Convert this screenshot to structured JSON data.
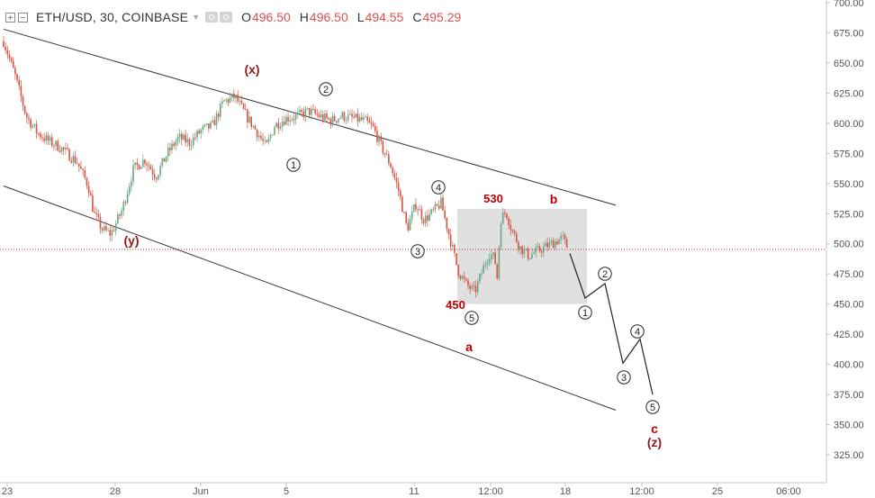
{
  "header": {
    "symbol": "ETH/USD, 30, COINBASE",
    "ohlc": [
      {
        "key": "O",
        "value": "496.50"
      },
      {
        "key": "H",
        "value": "496.50"
      },
      {
        "key": "L",
        "value": "494.55"
      },
      {
        "key": "C",
        "value": "495.29"
      }
    ],
    "icons": [
      "expand-icon",
      "collapse-icon",
      "visibility-icon",
      "settings-icon"
    ]
  },
  "colors": {
    "up": "#6ba583",
    "down": "#d75442",
    "label_red": "#c00000",
    "wave_label_dark": "#8b1a1a",
    "box_fill": "#e0e0e0",
    "price_line": "#cc2a2a",
    "axis_text": "#555555"
  },
  "chart_data": {
    "type": "candlestick",
    "y_axis": {
      "side": "right",
      "range": [
        310,
        700
      ],
      "ticks": [
        "325.00",
        "350.00",
        "375.00",
        "400.00",
        "425.00",
        "450.00",
        "475.00",
        "500.00",
        "525.00",
        "550.00",
        "575.00",
        "600.00",
        "625.00",
        "650.00",
        "675.00",
        "700.00"
      ]
    },
    "x_axis": {
      "labels": [
        "23",
        "28",
        "Jun",
        "5",
        "11",
        "12:00",
        "18",
        "12:00",
        "25",
        "06:00"
      ]
    },
    "last_price": 495.29,
    "price_path": [
      [
        0,
        668
      ],
      [
        0.04,
        640
      ],
      [
        0.08,
        606
      ],
      [
        0.12,
        592
      ],
      [
        0.16,
        585
      ],
      [
        0.2,
        580
      ],
      [
        0.26,
        568
      ],
      [
        0.3,
        548
      ],
      [
        0.32,
        525
      ],
      [
        0.35,
        512
      ],
      [
        0.38,
        508
      ],
      [
        0.42,
        528
      ],
      [
        0.46,
        562
      ],
      [
        0.5,
        570
      ],
      [
        0.54,
        556
      ],
      [
        0.58,
        575
      ],
      [
        0.62,
        588
      ],
      [
        0.66,
        584
      ],
      [
        0.7,
        594
      ],
      [
        0.74,
        598
      ],
      [
        0.78,
        618
      ],
      [
        0.82,
        622
      ],
      [
        0.86,
        606
      ],
      [
        0.9,
        592
      ],
      [
        0.93,
        580
      ],
      [
        0.96,
        598
      ],
      [
        1.0,
        604
      ],
      [
        1.04,
        606
      ],
      [
        1.08,
        610
      ],
      [
        1.12,
        606
      ],
      [
        1.16,
        602
      ],
      [
        1.2,
        606
      ],
      [
        1.24,
        604
      ],
      [
        1.28,
        602
      ],
      [
        1.31,
        596
      ],
      [
        1.34,
        580
      ],
      [
        1.37,
        566
      ],
      [
        1.4,
        544
      ],
      [
        1.43,
        512
      ],
      [
        1.46,
        533
      ],
      [
        1.49,
        520
      ],
      [
        1.52,
        526
      ],
      [
        1.55,
        534
      ],
      [
        1.58,
        506
      ],
      [
        1.61,
        478
      ],
      [
        1.64,
        466
      ],
      [
        1.67,
        460
      ],
      [
        1.7,
        480
      ],
      [
        1.72,
        492
      ],
      [
        1.74,
        488
      ],
      [
        1.75,
        470
      ],
      [
        1.76,
        520
      ],
      [
        1.78,
        527
      ],
      [
        1.8,
        512
      ],
      [
        1.83,
        497
      ],
      [
        1.86,
        490
      ],
      [
        1.9,
        495
      ],
      [
        1.94,
        500
      ],
      [
        1.98,
        505
      ],
      [
        2.0,
        496
      ]
    ],
    "projection": [
      [
        0.0,
        492
      ],
      [
        0.05,
        455
      ],
      [
        0.09,
        467
      ],
      [
        0.15,
        401
      ],
      [
        0.19,
        421
      ],
      [
        0.24,
        375
      ]
    ],
    "wave_labels": [
      {
        "text": "(x)",
        "price": 640,
        "style": "paren"
      },
      {
        "text": "(y)",
        "price": 502,
        "style": "paren"
      },
      {
        "text": "a",
        "price": 413,
        "style": "letter"
      },
      {
        "text": "b",
        "price": 533,
        "style": "letter"
      },
      {
        "text": "c",
        "price": 362,
        "style": "letter"
      },
      {
        "text": "(z)",
        "price": 348,
        "style": "paren"
      },
      {
        "text": "530",
        "price": 535,
        "style": "number"
      },
      {
        "text": "450",
        "price": 446,
        "style": "number"
      }
    ],
    "circled": [
      {
        "text": "1",
        "price": 580
      },
      {
        "text": "2",
        "price": 630
      },
      {
        "text": "3",
        "price": 489
      },
      {
        "text": "4",
        "price": 549
      },
      {
        "text": "5",
        "price": 443
      },
      {
        "text": "1",
        "price": 449
      },
      {
        "text": "2",
        "price": 470
      },
      {
        "text": "3",
        "price": 386
      },
      {
        "text": "4",
        "price": 428
      },
      {
        "text": "5",
        "price": 363
      }
    ],
    "box": {
      "price_high": 529,
      "price_low": 450
    },
    "channel": {
      "upper": [
        [
          0,
          678
        ],
        [
          1,
          532
        ]
      ],
      "lower": [
        [
          0,
          548
        ],
        [
          1,
          362
        ]
      ]
    }
  }
}
